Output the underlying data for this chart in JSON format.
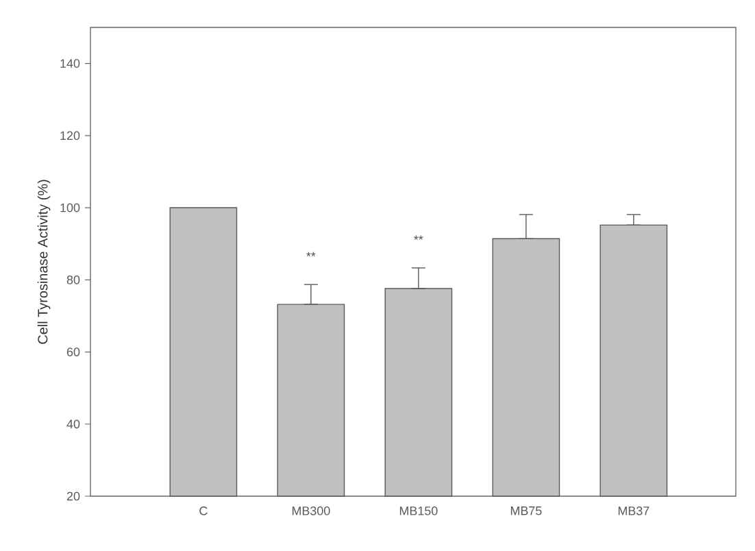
{
  "chart_data": {
    "type": "bar",
    "ylabel": "Cell Tyrosinase Activity (%)",
    "categories": [
      "C",
      "MB300",
      "MB150",
      "MB75",
      "MB37"
    ],
    "values": [
      100,
      73.2,
      77.6,
      91.4,
      95.2
    ],
    "errors": [
      null,
      [
        73.2,
        78.7
      ],
      [
        77.6,
        83.3
      ],
      [
        91.4,
        98.1
      ],
      [
        95.2,
        98.1
      ]
    ],
    "color": "#c0c0c0",
    "ylim": [
      20,
      150
    ],
    "yticks": [
      20,
      40,
      60,
      80,
      100,
      120,
      140
    ],
    "grid": false,
    "annotations": [
      "**",
      "**"
    ]
  }
}
